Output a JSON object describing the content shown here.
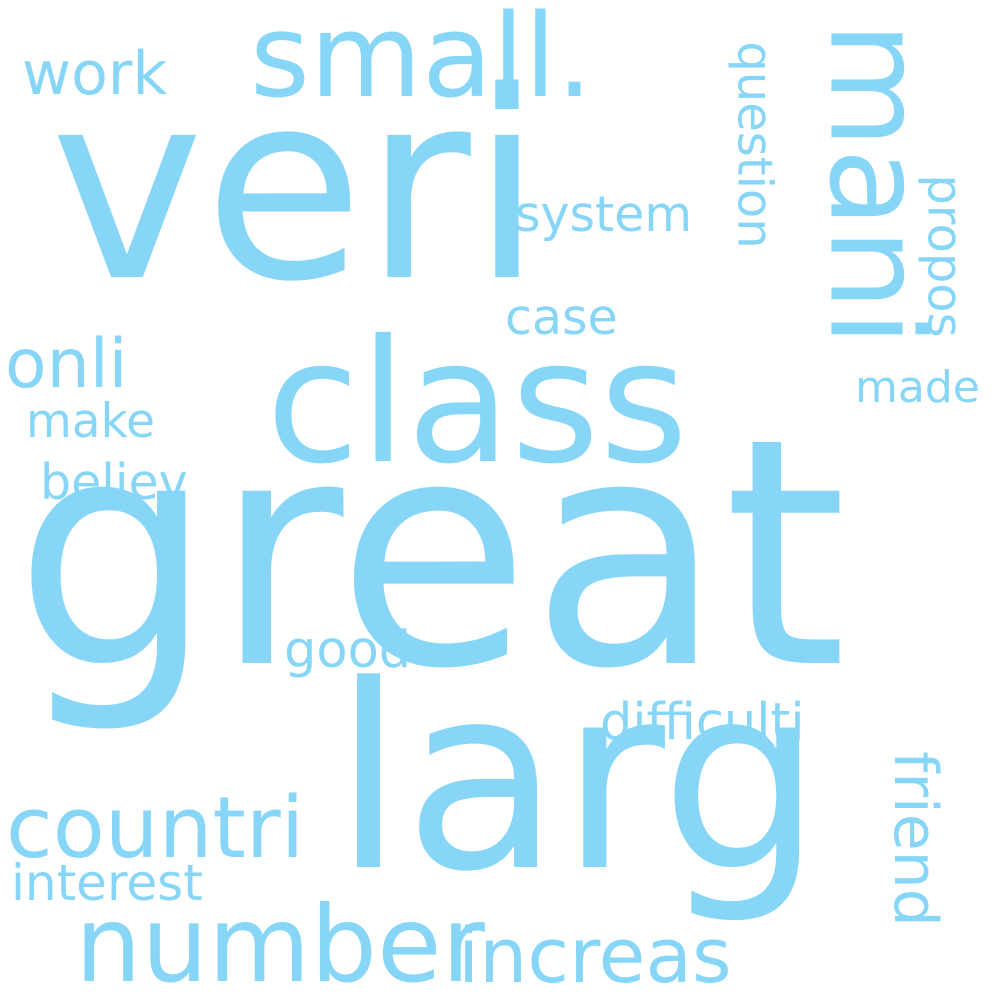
{
  "palette": {
    "text": "#87d6f8",
    "background": "#ffffff"
  },
  "words": [
    {
      "text": "veri",
      "orientation": "horizontal"
    },
    {
      "text": "great",
      "orientation": "horizontal"
    },
    {
      "text": "larg",
      "orientation": "horizontal"
    },
    {
      "text": "class",
      "orientation": "horizontal"
    },
    {
      "text": "small.",
      "orientation": "horizontal"
    },
    {
      "text": "mani",
      "orientation": "vertical"
    },
    {
      "text": "number",
      "orientation": "horizontal"
    },
    {
      "text": "countri",
      "orientation": "horizontal"
    },
    {
      "text": "increas",
      "orientation": "horizontal"
    },
    {
      "text": "work",
      "orientation": "horizontal"
    },
    {
      "text": "onli",
      "orientation": "horizontal"
    },
    {
      "text": "friend",
      "orientation": "vertical"
    },
    {
      "text": "question",
      "orientation": "vertical"
    },
    {
      "text": "difficulti",
      "orientation": "horizontal"
    },
    {
      "text": "system",
      "orientation": "horizontal"
    },
    {
      "text": "case",
      "orientation": "horizontal"
    },
    {
      "text": "propos",
      "orientation": "vertical"
    },
    {
      "text": "good",
      "orientation": "horizontal"
    },
    {
      "text": "interest",
      "orientation": "horizontal"
    },
    {
      "text": "believ",
      "orientation": "horizontal"
    },
    {
      "text": "make",
      "orientation": "horizontal"
    },
    {
      "text": "made",
      "orientation": "horizontal"
    }
  ]
}
